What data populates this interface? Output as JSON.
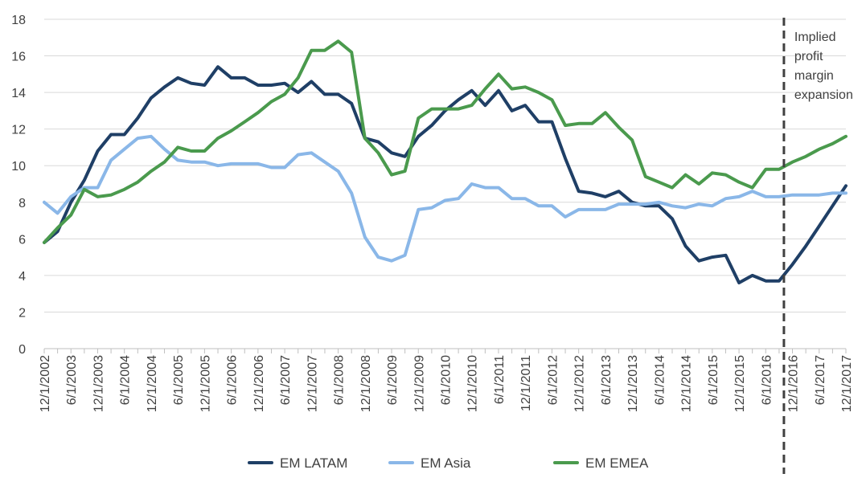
{
  "chart_data": {
    "type": "line",
    "title": "",
    "xlabel": "",
    "ylabel": "",
    "ylim": [
      0,
      18
    ],
    "yticks": [
      0,
      2,
      4,
      6,
      8,
      10,
      12,
      14,
      16,
      18
    ],
    "grid": "horizontal",
    "legend_position": "bottom",
    "x": [
      "12/1/2002",
      "3/1/2003",
      "6/1/2003",
      "9/1/2003",
      "12/1/2003",
      "3/1/2004",
      "6/1/2004",
      "9/1/2004",
      "12/1/2004",
      "3/1/2005",
      "6/1/2005",
      "9/1/2005",
      "12/1/2005",
      "3/1/2006",
      "6/1/2006",
      "9/1/2006",
      "12/1/2006",
      "3/1/2007",
      "6/1/2007",
      "9/1/2007",
      "12/1/2007",
      "3/1/2008",
      "6/1/2008",
      "9/1/2008",
      "12/1/2008",
      "3/1/2009",
      "6/1/2009",
      "9/1/2009",
      "12/1/2009",
      "3/1/2010",
      "6/1/2010",
      "9/1/2010",
      "12/1/2010",
      "3/1/2011",
      "6/1/2011",
      "9/1/2011",
      "12/1/2011",
      "3/1/2012",
      "6/1/2012",
      "9/1/2012",
      "12/1/2012",
      "3/1/2013",
      "6/1/2013",
      "9/1/2013",
      "12/1/2013",
      "3/1/2014",
      "6/1/2014",
      "9/1/2014",
      "12/1/2014",
      "3/1/2015",
      "6/1/2015",
      "9/1/2015",
      "12/1/2015",
      "3/1/2016",
      "6/1/2016",
      "9/1/2016",
      "12/1/2016",
      "3/1/2017",
      "6/1/2017",
      "9/1/2017",
      "12/1/2017"
    ],
    "x_tick_labels": [
      "12/1/2002",
      "6/1/2003",
      "12/1/2003",
      "6/1/2004",
      "12/1/2004",
      "6/1/2005",
      "12/1/2005",
      "6/1/2006",
      "12/1/2006",
      "6/1/2007",
      "12/1/2007",
      "6/1/2008",
      "12/1/2008",
      "6/1/2009",
      "12/1/2009",
      "6/1/2010",
      "12/1/2010",
      "6/1/2011",
      "12/1/2011",
      "6/1/2012",
      "12/1/2012",
      "6/1/2013",
      "12/1/2013",
      "6/1/2014",
      "12/1/2014",
      "6/1/2015",
      "12/1/2015",
      "6/1/2016",
      "12/1/2016",
      "6/1/2017",
      "12/1/2017"
    ],
    "series": [
      {
        "name": "EM LATAM",
        "color": "#1f3f66",
        "values": [
          5.8,
          6.4,
          8.0,
          9.2,
          10.8,
          11.7,
          11.7,
          12.6,
          13.7,
          14.3,
          14.8,
          14.5,
          14.4,
          15.4,
          14.8,
          14.8,
          14.4,
          14.4,
          14.5,
          14.0,
          14.6,
          13.9,
          13.9,
          13.4,
          11.5,
          11.3,
          10.7,
          10.5,
          11.6,
          12.2,
          13.0,
          13.6,
          14.1,
          13.3,
          14.1,
          13.0,
          13.3,
          12.4,
          12.4,
          10.4,
          8.6,
          8.5,
          8.3,
          8.6,
          8.0,
          7.8,
          7.8,
          7.1,
          5.6,
          4.8,
          5.0,
          5.1,
          3.6,
          4.0,
          3.7,
          3.7,
          4.6,
          5.6,
          6.7,
          7.8,
          8.9
        ]
      },
      {
        "name": "EM Asia",
        "color": "#8ab7e8",
        "values": [
          8.0,
          7.4,
          8.3,
          8.8,
          8.8,
          10.3,
          10.9,
          11.5,
          11.6,
          10.9,
          10.3,
          10.2,
          10.2,
          10.0,
          10.1,
          10.1,
          10.1,
          9.9,
          9.9,
          10.6,
          10.7,
          10.2,
          9.7,
          8.5,
          6.1,
          5.0,
          4.8,
          5.1,
          7.6,
          7.7,
          8.1,
          8.2,
          9.0,
          8.8,
          8.8,
          8.2,
          8.2,
          7.8,
          7.8,
          7.2,
          7.6,
          7.6,
          7.6,
          7.9,
          7.9,
          7.9,
          8.0,
          7.8,
          7.7,
          7.9,
          7.8,
          8.2,
          8.3,
          8.6,
          8.3,
          8.3,
          8.4,
          8.4,
          8.4,
          8.5,
          8.5
        ]
      },
      {
        "name": "EM EMEA",
        "color": "#4a9a4d",
        "values": [
          5.8,
          6.6,
          7.3,
          8.7,
          8.3,
          8.4,
          8.7,
          9.1,
          9.7,
          10.2,
          11.0,
          10.8,
          10.8,
          11.5,
          11.9,
          12.4,
          12.9,
          13.5,
          13.9,
          14.8,
          16.3,
          16.3,
          16.8,
          16.2,
          11.5,
          10.7,
          9.5,
          9.7,
          12.6,
          13.1,
          13.1,
          13.1,
          13.3,
          14.2,
          15.0,
          14.2,
          14.3,
          14.0,
          13.6,
          12.2,
          12.3,
          12.3,
          12.9,
          12.1,
          11.4,
          9.4,
          9.1,
          8.8,
          9.5,
          9.0,
          9.6,
          9.5,
          9.1,
          8.8,
          9.8,
          9.8,
          10.2,
          10.5,
          10.9,
          11.2,
          11.6
        ]
      }
    ],
    "annotation": {
      "text_lines": [
        "Implied",
        "profit",
        "margin",
        "expansion"
      ],
      "at_x": "9/1/2016",
      "style": "dashed vertical line"
    }
  }
}
